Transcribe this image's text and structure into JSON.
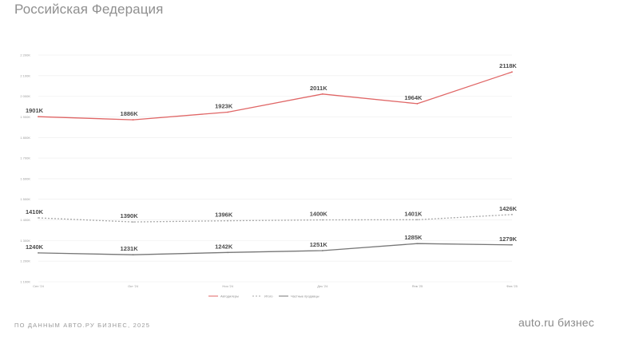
{
  "header": {
    "title": "Российская Федерация"
  },
  "footer": {
    "source": "ПО ДАННЫМ АВТО.РУ БИЗНЕС, 2025",
    "brand": "auto.ru бизнес"
  },
  "chart_data": {
    "type": "line",
    "title": "Российская Федерация",
    "categories": [
      "Сен '24",
      "Окт '24",
      "Ноя '24",
      "Дек '24",
      "Янв '25",
      "Фев '25"
    ],
    "ylim": [
      1100,
      2200
    ],
    "yticks": [
      1100,
      1200,
      1300,
      1400,
      1500,
      1600,
      1700,
      1800,
      1900,
      2000,
      2100,
      2200
    ],
    "ytick_labels": [
      "1 100K",
      "1 200K",
      "1 300K",
      "1 400K",
      "1 500K",
      "1 600K",
      "1 700K",
      "1 800K",
      "1 900K",
      "2 000K",
      "2 100K",
      "2 200K"
    ],
    "grid": true,
    "legend_position": "bottom",
    "series": [
      {
        "name": "Автодилеры",
        "values": [
          1901,
          1886,
          1923,
          2011,
          1964,
          2118
        ],
        "labels": [
          "1901K",
          "1886K",
          "1923K",
          "2011K",
          "1964K",
          "2118K"
        ],
        "color": "#e06666",
        "dash": ""
      },
      {
        "name": "Итого",
        "values": [
          1410,
          1390,
          1396,
          1400,
          1401,
          1426
        ],
        "labels": [
          "1410K",
          "1390K",
          "1396K",
          "1400K",
          "1401K",
          "1426K"
        ],
        "color": "#a8a8a8",
        "dash": "2,2"
      },
      {
        "name": "Частные продавцы",
        "values": [
          1240,
          1231,
          1242,
          1251,
          1285,
          1279
        ],
        "labels": [
          "1240K",
          "1231K",
          "1242K",
          "1251K",
          "1285K",
          "1279K"
        ],
        "color": "#777777",
        "dash": ""
      }
    ]
  }
}
